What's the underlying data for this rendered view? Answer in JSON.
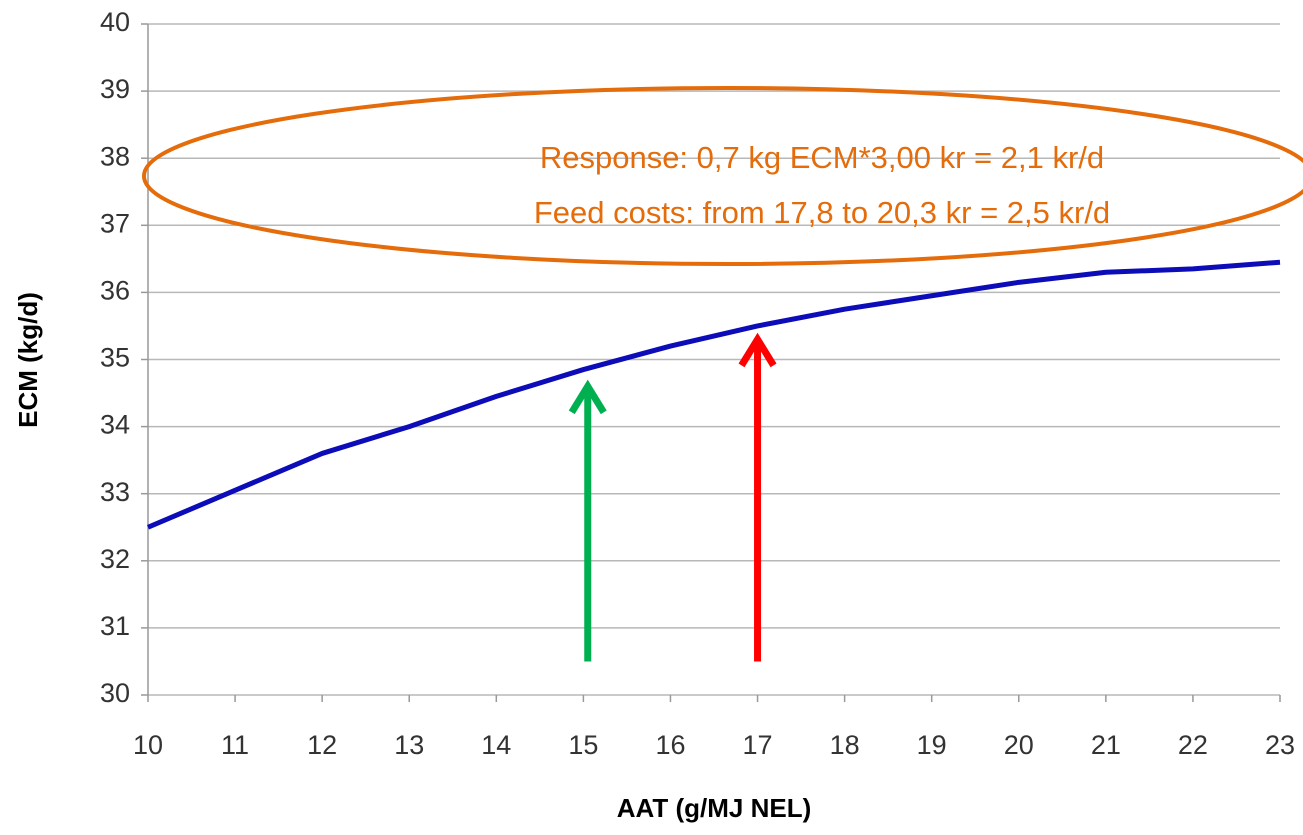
{
  "chart_data": {
    "type": "line",
    "x_label": "AAT (g/MJ NEL)",
    "y_label": "ECM (kg/d)",
    "x": [
      10,
      11,
      12,
      13,
      14,
      15,
      16,
      17,
      18,
      19,
      20,
      21,
      22,
      23
    ],
    "series": [
      {
        "color": "#0c0cb8",
        "values": [
          32.5,
          33.05,
          33.6,
          34.0,
          34.45,
          34.85,
          35.2,
          35.5,
          35.75,
          35.95,
          36.15,
          36.3,
          36.35,
          36.45
        ]
      }
    ],
    "xlim": [
      10,
      23
    ],
    "xticks": [
      10,
      11,
      12,
      13,
      14,
      15,
      16,
      17,
      18,
      19,
      20,
      21,
      22,
      23
    ],
    "ylim": [
      30,
      40
    ],
    "yticks": [
      30,
      31,
      32,
      33,
      34,
      35,
      36,
      37,
      38,
      39,
      40
    ],
    "grid": true,
    "annotations": [
      "Response: 0,7 kg ECM*3,00 kr = 2,1 kr/d",
      "Feed costs: from 17,8 to 20,3 kr = 2,5 kr/d"
    ],
    "arrows": [
      {
        "x": 15.05,
        "from": 30.5,
        "to": 34.6,
        "color": "#00b050"
      },
      {
        "x": 17,
        "from": 30.5,
        "to": 35.3,
        "color": "#ff0000"
      }
    ]
  }
}
